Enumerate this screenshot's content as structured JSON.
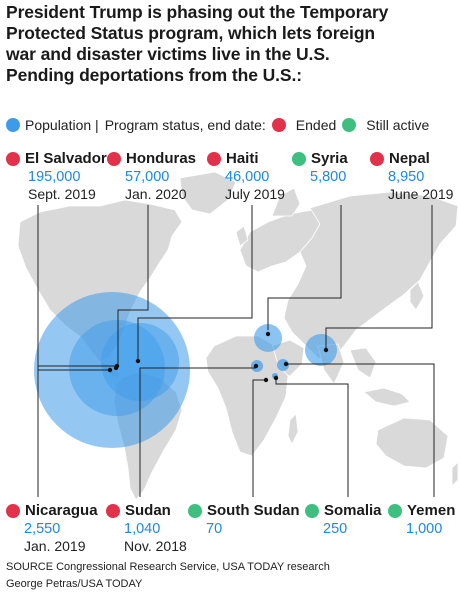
{
  "title_lines": [
    "President Trump is phasing out the Temporary",
    "Protected Status program, which lets foreign",
    "war and disaster victims live in the U.S.",
    "Pending deportations from the U.S.:"
  ],
  "legend": {
    "population_label": "Population |",
    "status_label": "Program status, end date:",
    "ended_label": "Ended",
    "active_label": "Still active"
  },
  "colors": {
    "population": "#3d9be9",
    "ended": "#e2314a",
    "active": "#3fbf7f",
    "land": "#d9d9d9",
    "pop_text": "#1e88e5"
  },
  "countries_top": [
    {
      "name": "El Salvador",
      "population": "195,000",
      "end_date": "Sept. 2019",
      "status": "ended"
    },
    {
      "name": "Honduras",
      "population": "57,000",
      "end_date": "Jan. 2020",
      "status": "ended"
    },
    {
      "name": "Haiti",
      "population": "46,000",
      "end_date": "July 2019",
      "status": "ended"
    },
    {
      "name": "Syria",
      "population": "5,800",
      "end_date": "",
      "status": "active"
    },
    {
      "name": "Nepal",
      "population": "8,950",
      "end_date": "June 2019",
      "status": "ended"
    }
  ],
  "countries_bottom": [
    {
      "name": "Nicaragua",
      "population": "2,550",
      "end_date": "Jan. 2019",
      "status": "ended"
    },
    {
      "name": "Sudan",
      "population": "1,040",
      "end_date": "Nov. 2018",
      "status": "ended"
    },
    {
      "name": "South Sudan",
      "population": "70",
      "end_date": "",
      "status": "active"
    },
    {
      "name": "Somalia",
      "population": "250",
      "end_date": "",
      "status": "active"
    },
    {
      "name": "Yemen",
      "population": "1,000",
      "end_date": "",
      "status": "active"
    }
  ],
  "footer": {
    "source": "SOURCE Congressional Research Service, USA TODAY research",
    "credit": "George Petras/USA TODAY"
  }
}
